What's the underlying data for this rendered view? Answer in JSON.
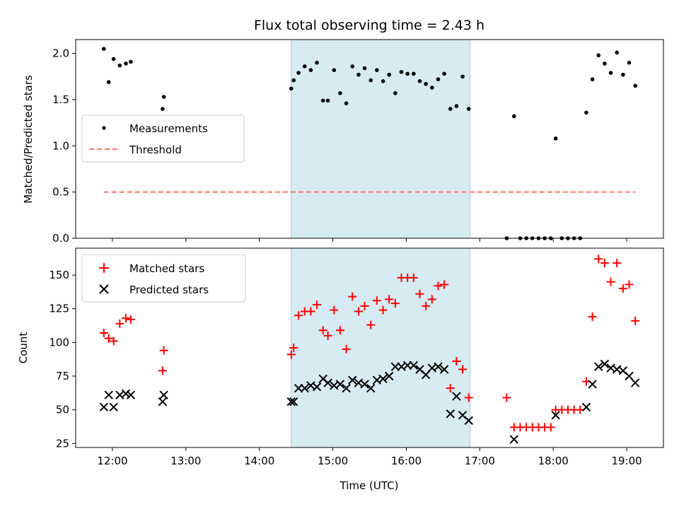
{
  "chart_data": [
    {
      "type": "scatter",
      "title": "Flux total observing time = 2.43 h",
      "xlabel": "",
      "ylabel": "Matched/Predicted stars",
      "ylim": [
        0,
        2.15
      ],
      "yticks": [
        0.0,
        0.5,
        1.0,
        1.5,
        2.0
      ],
      "ytick_labels": [
        "0.0",
        "0.5",
        "1.0",
        "1.5",
        "2.0"
      ],
      "xlim": [
        "11:30",
        "19:30"
      ],
      "shaded_interval": [
        "14:26",
        "16:52"
      ],
      "legend_placement": "center-left",
      "series": [
        {
          "name": "Measurements",
          "marker": "dot",
          "color": "#000000",
          "points": [
            [
              "11:53",
              2.05
            ],
            [
              "11:57",
              1.69
            ],
            [
              "12:01",
              1.94
            ],
            [
              "12:06",
              1.87
            ],
            [
              "12:11",
              1.89
            ],
            [
              "12:15",
              1.91
            ],
            [
              "12:41",
              1.4
            ],
            [
              "12:42",
              1.53
            ],
            [
              "14:26",
              1.62
            ],
            [
              "14:28",
              1.71
            ],
            [
              "14:32",
              1.79
            ],
            [
              "14:37",
              1.86
            ],
            [
              "14:42",
              1.82
            ],
            [
              "14:47",
              1.9
            ],
            [
              "14:52",
              1.49
            ],
            [
              "14:56",
              1.49
            ],
            [
              "15:01",
              1.82
            ],
            [
              "15:06",
              1.57
            ],
            [
              "15:11",
              1.46
            ],
            [
              "15:16",
              1.86
            ],
            [
              "15:21",
              1.77
            ],
            [
              "15:26",
              1.84
            ],
            [
              "15:31",
              1.71
            ],
            [
              "15:36",
              1.82
            ],
            [
              "15:41",
              1.7
            ],
            [
              "15:46",
              1.77
            ],
            [
              "15:51",
              1.57
            ],
            [
              "15:56",
              1.8
            ],
            [
              "16:01",
              1.78
            ],
            [
              "16:06",
              1.78
            ],
            [
              "16:11",
              1.7
            ],
            [
              "16:16",
              1.67
            ],
            [
              "16:21",
              1.63
            ],
            [
              "16:26",
              1.72
            ],
            [
              "16:31",
              1.78
            ],
            [
              "16:36",
              1.4
            ],
            [
              "16:41",
              1.43
            ],
            [
              "16:46",
              1.75
            ],
            [
              "16:51",
              1.4
            ],
            [
              "17:22",
              0.0
            ],
            [
              "17:28",
              1.32
            ],
            [
              "17:33",
              0.0
            ],
            [
              "17:38",
              0.0
            ],
            [
              "17:43",
              0.0
            ],
            [
              "17:48",
              0.0
            ],
            [
              "17:53",
              0.0
            ],
            [
              "17:58",
              0.0
            ],
            [
              "18:02",
              1.08
            ],
            [
              "18:07",
              0.0
            ],
            [
              "18:12",
              0.0
            ],
            [
              "18:17",
              0.0
            ],
            [
              "18:22",
              0.0
            ],
            [
              "18:27",
              1.36
            ],
            [
              "18:32",
              1.72
            ],
            [
              "18:37",
              1.98
            ],
            [
              "18:42",
              1.89
            ],
            [
              "18:47",
              1.79
            ],
            [
              "18:52",
              2.01
            ],
            [
              "18:57",
              1.77
            ],
            [
              "19:02",
              1.9
            ],
            [
              "19:07",
              1.65
            ]
          ]
        },
        {
          "name": "Threshold",
          "marker": "dashed-line",
          "color": "#ff7070",
          "points": [
            [
              "11:53",
              0.5
            ],
            [
              "19:07",
              0.5
            ]
          ]
        }
      ]
    },
    {
      "type": "scatter",
      "title": "",
      "xlabel": "Time (UTC)",
      "ylabel": "Count",
      "ylim": [
        22,
        170
      ],
      "yticks": [
        25,
        50,
        75,
        100,
        125,
        150
      ],
      "ytick_labels": [
        "25",
        "50",
        "75",
        "100",
        "125",
        "150"
      ],
      "xlim": [
        "11:30",
        "19:30"
      ],
      "xticks": [
        "12:00",
        "13:00",
        "14:00",
        "15:00",
        "16:00",
        "17:00",
        "18:00",
        "19:00"
      ],
      "xtick_labels": [
        "12:00",
        "13:00",
        "14:00",
        "15:00",
        "16:00",
        "17:00",
        "18:00",
        "19:00"
      ],
      "shaded_interval": [
        "14:26",
        "16:52"
      ],
      "legend_placement": "top-left",
      "series": [
        {
          "name": "Matched stars",
          "marker": "plus",
          "color": "#ff0000",
          "points": [
            [
              "11:53",
              107
            ],
            [
              "11:57",
              103
            ],
            [
              "12:01",
              101
            ],
            [
              "12:06",
              114
            ],
            [
              "12:11",
              118
            ],
            [
              "12:15",
              117
            ],
            [
              "12:41",
              79
            ],
            [
              "12:42",
              94
            ],
            [
              "14:26",
              91
            ],
            [
              "14:28",
              96
            ],
            [
              "14:32",
              120
            ],
            [
              "14:37",
              123
            ],
            [
              "14:42",
              123
            ],
            [
              "14:47",
              128
            ],
            [
              "14:52",
              109
            ],
            [
              "14:56",
              105
            ],
            [
              "15:01",
              124
            ],
            [
              "15:06",
              109
            ],
            [
              "15:11",
              95
            ],
            [
              "15:16",
              134
            ],
            [
              "15:21",
              123
            ],
            [
              "15:26",
              127
            ],
            [
              "15:31",
              113
            ],
            [
              "15:36",
              131
            ],
            [
              "15:41",
              124
            ],
            [
              "15:46",
              132
            ],
            [
              "15:51",
              129
            ],
            [
              "15:56",
              148
            ],
            [
              "16:01",
              148
            ],
            [
              "16:06",
              148
            ],
            [
              "16:11",
              136
            ],
            [
              "16:16",
              127
            ],
            [
              "16:21",
              132
            ],
            [
              "16:26",
              142
            ],
            [
              "16:31",
              143
            ],
            [
              "16:36",
              66
            ],
            [
              "16:41",
              86
            ],
            [
              "16:46",
              80
            ],
            [
              "16:51",
              59
            ],
            [
              "17:22",
              59
            ],
            [
              "17:28",
              37
            ],
            [
              "17:33",
              37
            ],
            [
              "17:38",
              37
            ],
            [
              "17:43",
              37
            ],
            [
              "17:48",
              37
            ],
            [
              "17:53",
              37
            ],
            [
              "17:58",
              37
            ],
            [
              "18:02",
              50
            ],
            [
              "18:07",
              50
            ],
            [
              "18:12",
              50
            ],
            [
              "18:17",
              50
            ],
            [
              "18:22",
              50
            ],
            [
              "18:27",
              71
            ],
            [
              "18:32",
              119
            ],
            [
              "18:37",
              162
            ],
            [
              "18:42",
              159
            ],
            [
              "18:47",
              145
            ],
            [
              "18:52",
              159
            ],
            [
              "18:57",
              140
            ],
            [
              "19:02",
              143
            ],
            [
              "19:07",
              116
            ]
          ]
        },
        {
          "name": "Predicted stars",
          "marker": "x",
          "color": "#000000",
          "points": [
            [
              "11:53",
              52
            ],
            [
              "11:57",
              61
            ],
            [
              "12:01",
              52
            ],
            [
              "12:06",
              61
            ],
            [
              "12:11",
              62
            ],
            [
              "12:15",
              61
            ],
            [
              "12:41",
              56
            ],
            [
              "12:42",
              61
            ],
            [
              "14:26",
              56
            ],
            [
              "14:28",
              56
            ],
            [
              "14:32",
              66
            ],
            [
              "14:37",
              66
            ],
            [
              "14:42",
              68
            ],
            [
              "14:47",
              67
            ],
            [
              "14:52",
              73
            ],
            [
              "14:56",
              70
            ],
            [
              "15:01",
              68
            ],
            [
              "15:06",
              69
            ],
            [
              "15:11",
              66
            ],
            [
              "15:16",
              72
            ],
            [
              "15:21",
              70
            ],
            [
              "15:26",
              69
            ],
            [
              "15:31",
              66
            ],
            [
              "15:36",
              72
            ],
            [
              "15:41",
              73
            ],
            [
              "15:46",
              75
            ],
            [
              "15:51",
              82
            ],
            [
              "15:56",
              82
            ],
            [
              "16:01",
              83
            ],
            [
              "16:06",
              83
            ],
            [
              "16:11",
              80
            ],
            [
              "16:16",
              76
            ],
            [
              "16:21",
              81
            ],
            [
              "16:26",
              82
            ],
            [
              "16:31",
              80
            ],
            [
              "16:36",
              47
            ],
            [
              "16:41",
              60
            ],
            [
              "16:46",
              46
            ],
            [
              "16:51",
              42
            ],
            [
              "17:28",
              28
            ],
            [
              "18:02",
              46
            ],
            [
              "18:27",
              52
            ],
            [
              "18:32",
              69
            ],
            [
              "18:37",
              82
            ],
            [
              "18:42",
              84
            ],
            [
              "18:47",
              81
            ],
            [
              "18:52",
              80
            ],
            [
              "18:57",
              79
            ],
            [
              "19:02",
              75
            ],
            [
              "19:07",
              70
            ]
          ]
        }
      ]
    }
  ]
}
